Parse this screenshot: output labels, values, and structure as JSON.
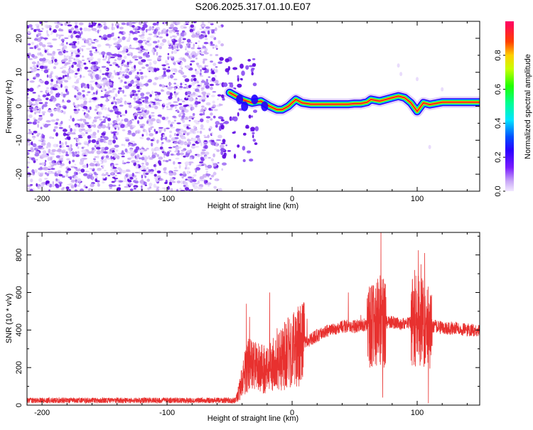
{
  "title": "S206.2025.317.01.10.E07",
  "colorbar": {
    "label": "Normalized spectral amplitude",
    "ticks": [
      "0.0",
      "0.2",
      "0.4",
      "0.6",
      "0.8"
    ],
    "tick_values": [
      0.0,
      0.2,
      0.4,
      0.6,
      0.8
    ],
    "range": [
      0,
      1
    ]
  },
  "colors": {
    "series_line": "#e8312f",
    "speckle_dark": "#5a00e0",
    "speckle_light": "#c9a8f5"
  },
  "chart_data": [
    {
      "type": "heatmap",
      "title": "S206.2025.317.01.10.E07",
      "xlabel": "Height of straight line (km)",
      "ylabel": "Frequency (Hz)",
      "xlim": [
        -212,
        150
      ],
      "ylim": [
        -25,
        25
      ],
      "x_ticks": [
        -200,
        -100,
        0,
        100
      ],
      "x_tick_labels": [
        "-200",
        "-100",
        "0",
        "100"
      ],
      "y_ticks": [
        -20,
        -10,
        0,
        10,
        20
      ],
      "y_tick_labels": [
        "-20",
        "-10",
        "0",
        "10",
        "20"
      ],
      "noise_region_x": [
        -212,
        -58
      ],
      "signal_ridge": {
        "x": [
          -50,
          -40,
          -32,
          -25,
          -18,
          -12,
          -8,
          -3,
          0,
          3,
          8,
          15,
          25,
          35,
          45,
          50,
          55,
          60,
          63,
          70,
          80,
          85,
          90,
          95,
          100,
          105,
          110,
          120,
          130,
          140,
          150
        ],
        "y": [
          4,
          2,
          1,
          1.5,
          0,
          -1,
          -1,
          0,
          1,
          2,
          1,
          0.6,
          0.6,
          0.6,
          0.6,
          0.8,
          0.8,
          1.2,
          2,
          1.5,
          2.5,
          3,
          2.5,
          1,
          -1.5,
          1,
          0.5,
          1.2,
          1.2,
          1.2,
          1.2
        ]
      }
    },
    {
      "type": "line",
      "xlabel": "Height of straight line (km)",
      "ylabel": "SNR (10 * v/v)",
      "xlim": [
        -212,
        150
      ],
      "ylim": [
        0,
        920
      ],
      "x_ticks": [
        -200,
        -100,
        0,
        100
      ],
      "x_tick_labels": [
        "-200",
        "-100",
        "0",
        "100"
      ],
      "y_ticks": [
        0,
        200,
        400,
        600,
        800
      ],
      "y_tick_labels": [
        "0",
        "200",
        "400",
        "600",
        "800"
      ],
      "series": [
        {
          "name": "SNR",
          "envelope": {
            "x": [
              -212,
              -45,
              -42,
              -38,
              -35,
              -30,
              -25,
              -20,
              -10,
              0,
              10,
              20,
              30,
              40,
              50,
              60,
              65,
              70,
              75,
              80,
              90,
              95,
              100,
              105,
              110,
              115,
              120,
              130,
              140,
              150
            ],
            "y": [
              25,
              25,
              80,
              180,
              220,
              200,
              190,
              200,
              240,
              300,
              330,
              370,
              400,
              420,
              420,
              430,
              440,
              450,
              440,
              440,
              430,
              440,
              450,
              440,
              420,
              420,
              410,
              410,
              400,
              400
            ]
          },
          "spikes": [
            {
              "x": -36.5,
              "y": 540
            },
            {
              "x": -34,
              "y": 470
            },
            {
              "x": -18,
              "y": 600
            },
            {
              "x": -12,
              "y": 410
            },
            {
              "x": -7,
              "y": 390
            },
            {
              "x": 12,
              "y": 460
            },
            {
              "x": 45,
              "y": 600
            },
            {
              "x": 55,
              "y": 480
            },
            {
              "x": 61,
              "y": 600
            },
            {
              "x": 71,
              "y": 925
            },
            {
              "x": 72.5,
              "y": 40
            },
            {
              "x": 98,
              "y": 720
            },
            {
              "x": 101,
              "y": 825
            },
            {
              "x": 103,
              "y": 750
            },
            {
              "x": 106,
              "y": 810
            },
            {
              "x": 109,
              "y": 10
            },
            {
              "x": 111,
              "y": 580
            }
          ]
        }
      ]
    }
  ]
}
